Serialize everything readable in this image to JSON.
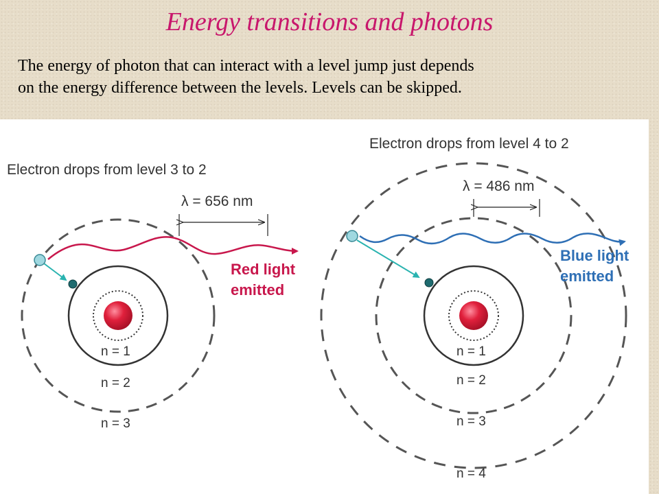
{
  "slide": {
    "title": "Energy transitions and photons",
    "text_line1": "The energy of photon that can interact with a level jump just depends",
    "text_line2": "on the energy difference between the levels. Levels can be skipped."
  },
  "left_panel": {
    "heading": "Electron drops from level 3 to 2",
    "wavelength_label": "λ = 656 nm",
    "emitted_line1": "Red light",
    "emitted_line2": "emitted",
    "levels": [
      "n = 1",
      "n = 2",
      "n = 3"
    ]
  },
  "right_panel": {
    "heading": "Electron drops from level 4 to 2",
    "wavelength_label": "λ = 486 nm",
    "emitted_line1": "Blue light",
    "emitted_line2": "emitted",
    "levels": [
      "n = 1",
      "n = 2",
      "n = 3",
      "n = 4"
    ]
  },
  "colors": {
    "title": "#c8176c",
    "red_light": "#c8174c",
    "blue_light": "#2e6fb5",
    "nucleus": "#d81e3c",
    "electron_arrow": "#2ab3b0"
  }
}
